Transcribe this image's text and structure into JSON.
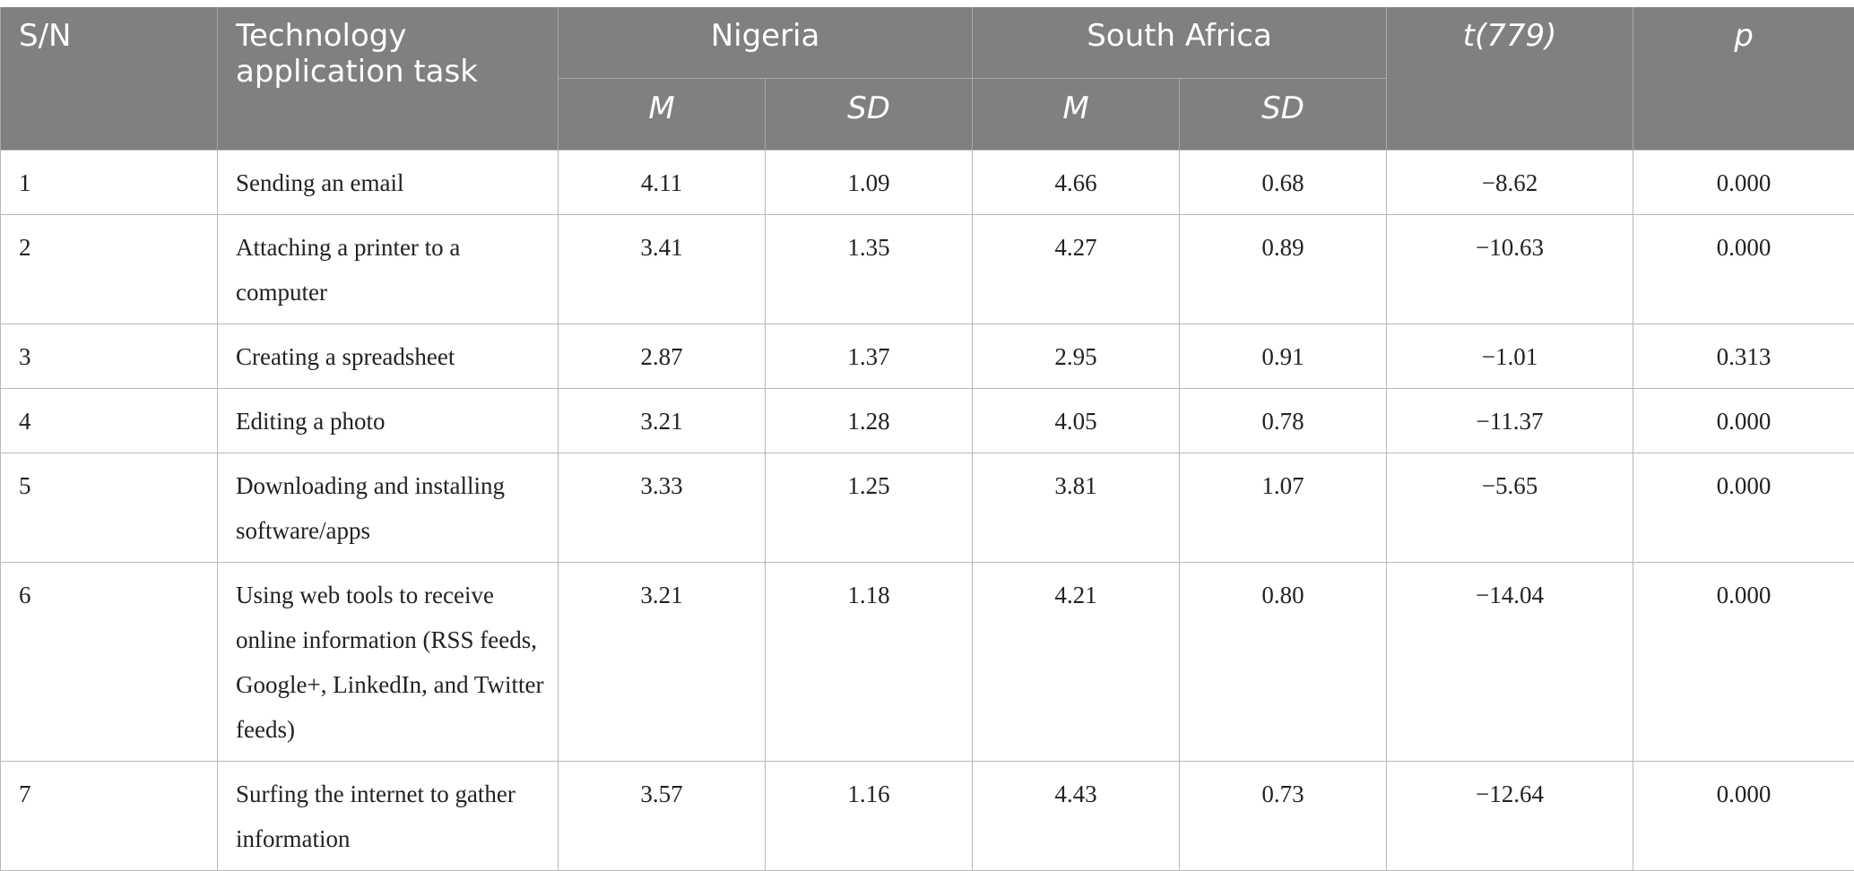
{
  "headers": {
    "sn": "S/N",
    "task": "Technology application task",
    "group1": "Nigeria",
    "group2": "South Africa",
    "t": "t(779)",
    "p": "p",
    "m": "M",
    "sd": "SD"
  },
  "rows": [
    {
      "sn": "1",
      "task": "Sending an email",
      "ng_m": "4.11",
      "ng_sd": "1.09",
      "sa_m": "4.66",
      "sa_sd": "0.68",
      "t": "−8.62",
      "p": "0.000"
    },
    {
      "sn": "2",
      "task": "Attaching a printer to a computer",
      "ng_m": "3.41",
      "ng_sd": "1.35",
      "sa_m": "4.27",
      "sa_sd": "0.89",
      "t": "−10.63",
      "p": "0.000"
    },
    {
      "sn": "3",
      "task": "Creating a spreadsheet",
      "ng_m": "2.87",
      "ng_sd": "1.37",
      "sa_m": "2.95",
      "sa_sd": "0.91",
      "t": "−1.01",
      "p": "0.313"
    },
    {
      "sn": "4",
      "task": "Editing a photo",
      "ng_m": "3.21",
      "ng_sd": "1.28",
      "sa_m": "4.05",
      "sa_sd": "0.78",
      "t": "−11.37",
      "p": "0.000"
    },
    {
      "sn": "5",
      "task": "Downloading and installing software/apps",
      "ng_m": "3.33",
      "ng_sd": "1.25",
      "sa_m": "3.81",
      "sa_sd": "1.07",
      "t": "−5.65",
      "p": "0.000"
    },
    {
      "sn": "6",
      "task": "Using web tools to receive online information (RSS feeds, Google+, LinkedIn, and Twitter feeds)",
      "ng_m": "3.21",
      "ng_sd": "1.18",
      "sa_m": "4.21",
      "sa_sd": "0.80",
      "t": "−14.04",
      "p": "0.000"
    },
    {
      "sn": "7",
      "task": "Surfing the internet to gather information",
      "ng_m": "3.57",
      "ng_sd": "1.16",
      "sa_m": "4.43",
      "sa_sd": "0.73",
      "t": "−12.64",
      "p": "0.000"
    }
  ]
}
